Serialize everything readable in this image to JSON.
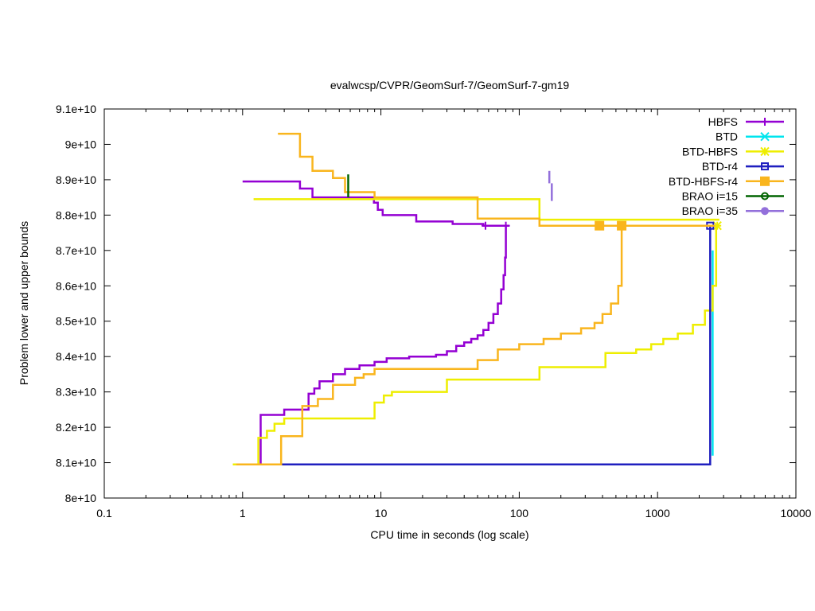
{
  "chart_data": {
    "type": "line",
    "title": "evalwcsp/CVPR/GeomSurf-7/GeomSurf-7-gm19",
    "xlabel": "CPU time in seconds (log scale)",
    "ylabel": "Problem lower and upper bounds",
    "xscale": "log",
    "xlim": [
      0.1,
      10000
    ],
    "ylim": [
      80000000000,
      91000000000
    ],
    "xticks": [
      {
        "v": 0.1,
        "label": "0.1"
      },
      {
        "v": 1,
        "label": "1"
      },
      {
        "v": 10,
        "label": "10"
      },
      {
        "v": 100,
        "label": "100"
      },
      {
        "v": 1000,
        "label": "1000"
      },
      {
        "v": 10000,
        "label": "10000"
      }
    ],
    "yticks": [
      {
        "v": 80000000000,
        "label": "8e+10"
      },
      {
        "v": 81000000000,
        "label": "8.1e+10"
      },
      {
        "v": 82000000000,
        "label": "8.2e+10"
      },
      {
        "v": 83000000000,
        "label": "8.3e+10"
      },
      {
        "v": 84000000000,
        "label": "8.4e+10"
      },
      {
        "v": 85000000000,
        "label": "8.5e+10"
      },
      {
        "v": 86000000000,
        "label": "8.6e+10"
      },
      {
        "v": 87000000000,
        "label": "8.7e+10"
      },
      {
        "v": 88000000000,
        "label": "8.8e+10"
      },
      {
        "v": 89000000000,
        "label": "8.9e+10"
      },
      {
        "v": 90000000000,
        "label": "9e+10"
      },
      {
        "v": 91000000000,
        "label": "9.1e+10"
      }
    ],
    "grid": false,
    "legend": "top-right",
    "series": [
      {
        "name": "HBFS",
        "color": "#9400d3",
        "marker": "plus",
        "lines": [
          [
            [
              1.0,
              88950000000
            ],
            [
              2.6,
              88950000000
            ],
            [
              2.6,
              88750000000
            ],
            [
              3.2,
              88750000000
            ],
            [
              3.2,
              88500000000
            ],
            [
              8.9,
              88500000000
            ],
            [
              8.9,
              88350000000
            ],
            [
              9.5,
              88350000000
            ],
            [
              9.5,
              88150000000
            ],
            [
              10.3,
              88150000000
            ],
            [
              10.3,
              88000000000
            ],
            [
              18.0,
              88000000000
            ],
            [
              18.0,
              87820000000
            ],
            [
              33.0,
              87820000000
            ],
            [
              33.0,
              87750000000
            ],
            [
              55.0,
              87750000000
            ],
            [
              55.0,
              87700000000
            ],
            [
              85.0,
              87700000000
            ]
          ],
          [
            [
              1.35,
              80950000000
            ],
            [
              1.35,
              82350000000
            ],
            [
              2.0,
              82350000000
            ],
            [
              2.0,
              82500000000
            ],
            [
              3.0,
              82500000000
            ],
            [
              3.0,
              82950000000
            ],
            [
              3.3,
              82950000000
            ],
            [
              3.3,
              83100000000
            ],
            [
              3.6,
              83100000000
            ],
            [
              3.6,
              83300000000
            ],
            [
              4.5,
              83300000000
            ],
            [
              4.5,
              83500000000
            ],
            [
              5.5,
              83500000000
            ],
            [
              5.5,
              83650000000
            ],
            [
              7.0,
              83650000000
            ],
            [
              7.0,
              83750000000
            ],
            [
              9.0,
              83750000000
            ],
            [
              9.0,
              83850000000
            ],
            [
              11.0,
              83850000000
            ],
            [
              11.0,
              83950000000
            ],
            [
              16.0,
              83950000000
            ],
            [
              16.0,
              84000000000
            ],
            [
              25.0,
              84000000000
            ],
            [
              25.0,
              84050000000
            ],
            [
              30.0,
              84050000000
            ],
            [
              30.0,
              84150000000
            ],
            [
              35.0,
              84150000000
            ],
            [
              35.0,
              84300000000
            ],
            [
              40.0,
              84300000000
            ],
            [
              40.0,
              84400000000
            ],
            [
              45.0,
              84400000000
            ],
            [
              45.0,
              84500000000
            ],
            [
              50.0,
              84500000000
            ],
            [
              50.0,
              84600000000
            ],
            [
              55.0,
              84600000000
            ],
            [
              55.0,
              84750000000
            ],
            [
              60.0,
              84750000000
            ],
            [
              60.0,
              84950000000
            ],
            [
              65.0,
              84950000000
            ],
            [
              65.0,
              85200000000
            ],
            [
              70.0,
              85200000000
            ],
            [
              70.0,
              85500000000
            ],
            [
              74.0,
              85500000000
            ],
            [
              74.0,
              85900000000
            ],
            [
              77.0,
              85900000000
            ],
            [
              77.0,
              86300000000
            ],
            [
              79.0,
              86300000000
            ],
            [
              79.0,
              86800000000
            ],
            [
              80.0,
              86800000000
            ],
            [
              80.0,
              87700000000
            ]
          ]
        ],
        "points": [
          [
            57.0,
            87700000000
          ],
          [
            80.0,
            87700000000
          ]
        ]
      },
      {
        "name": "BTD",
        "color": "#00e5ee",
        "marker": "cross",
        "lines": [
          [
            [
              2500.0,
              81200000000
            ],
            [
              2500.0,
              87000000000
            ]
          ]
        ],
        "points": []
      },
      {
        "name": "BTD-HBFS",
        "color": "#eeee00",
        "marker": "star",
        "lines": [
          [
            [
              1.2,
              88450000000
            ],
            [
              140.0,
              88450000000
            ],
            [
              140.0,
              87870000000
            ],
            [
              2800.0,
              87870000000
            ]
          ],
          [
            [
              0.85,
              80950000000
            ],
            [
              1.3,
              80950000000
            ],
            [
              1.3,
              81700000000
            ],
            [
              1.5,
              81700000000
            ],
            [
              1.5,
              81900000000
            ],
            [
              1.7,
              81900000000
            ],
            [
              1.7,
              82100000000
            ],
            [
              2.0,
              82100000000
            ],
            [
              2.0,
              82250000000
            ],
            [
              9.0,
              82250000000
            ],
            [
              9.0,
              82700000000
            ],
            [
              10.5,
              82700000000
            ],
            [
              10.5,
              82900000000
            ],
            [
              12.0,
              82900000000
            ],
            [
              12.0,
              83000000000
            ],
            [
              30.0,
              83000000000
            ],
            [
              30.0,
              83350000000
            ],
            [
              140.0,
              83350000000
            ],
            [
              140.0,
              83700000000
            ],
            [
              420.0,
              83700000000
            ],
            [
              420.0,
              84100000000
            ],
            [
              700.0,
              84100000000
            ],
            [
              700.0,
              84200000000
            ],
            [
              900.0,
              84200000000
            ],
            [
              900.0,
              84350000000
            ],
            [
              1100.0,
              84350000000
            ],
            [
              1100.0,
              84500000000
            ],
            [
              1400.0,
              84500000000
            ],
            [
              1400.0,
              84650000000
            ],
            [
              1800.0,
              84650000000
            ],
            [
              1800.0,
              84900000000
            ],
            [
              2200.0,
              84900000000
            ],
            [
              2200.0,
              85300000000
            ],
            [
              2500.0,
              85300000000
            ],
            [
              2500.0,
              86000000000
            ],
            [
              2650.0,
              86000000000
            ],
            [
              2650.0,
              87700000000
            ]
          ]
        ],
        "points": [
          [
            2700.0,
            87700000000
          ]
        ]
      },
      {
        "name": "BTD-r4",
        "color": "#1f1fbf",
        "marker": "box",
        "lines": [
          [
            [
              0.92,
              80950000000
            ],
            [
              2400.0,
              80950000000
            ],
            [
              2400.0,
              87700000000
            ]
          ]
        ],
        "points": [
          [
            2400.0,
            87700000000
          ]
        ]
      },
      {
        "name": "BTD-HBFS-r4",
        "color": "#f9b51d",
        "marker": "fbox",
        "lines": [
          [
            [
              1.8,
              90300000000
            ],
            [
              2.6,
              90300000000
            ],
            [
              2.6,
              89650000000
            ],
            [
              3.2,
              89650000000
            ],
            [
              3.2,
              89250000000
            ],
            [
              4.5,
              89250000000
            ],
            [
              4.5,
              89050000000
            ],
            [
              5.5,
              89050000000
            ],
            [
              5.5,
              88650000000
            ],
            [
              9.0,
              88650000000
            ],
            [
              9.0,
              88500000000
            ],
            [
              50.0,
              88500000000
            ],
            [
              50.0,
              87900000000
            ],
            [
              140.0,
              87900000000
            ],
            [
              140.0,
              87700000000
            ],
            [
              2600.0,
              87700000000
            ]
          ],
          [
            [
              0.9,
              80950000000
            ],
            [
              1.9,
              80950000000
            ],
            [
              1.9,
              81750000000
            ],
            [
              2.7,
              81750000000
            ],
            [
              2.7,
              82600000000
            ],
            [
              3.5,
              82600000000
            ],
            [
              3.5,
              82800000000
            ],
            [
              4.5,
              82800000000
            ],
            [
              4.5,
              83200000000
            ],
            [
              6.5,
              83200000000
            ],
            [
              6.5,
              83400000000
            ],
            [
              7.5,
              83400000000
            ],
            [
              7.5,
              83500000000
            ],
            [
              9.0,
              83500000000
            ],
            [
              9.0,
              83650000000
            ],
            [
              50.0,
              83650000000
            ],
            [
              50.0,
              83900000000
            ],
            [
              70.0,
              83900000000
            ],
            [
              70.0,
              84200000000
            ],
            [
              100.0,
              84200000000
            ],
            [
              100.0,
              84350000000
            ],
            [
              150.0,
              84350000000
            ],
            [
              150.0,
              84500000000
            ],
            [
              200.0,
              84500000000
            ],
            [
              200.0,
              84650000000
            ],
            [
              280.0,
              84650000000
            ],
            [
              280.0,
              84800000000
            ],
            [
              350.0,
              84800000000
            ],
            [
              350.0,
              84950000000
            ],
            [
              400.0,
              84950000000
            ],
            [
              400.0,
              85200000000
            ],
            [
              460.0,
              85200000000
            ],
            [
              460.0,
              85500000000
            ],
            [
              520.0,
              85500000000
            ],
            [
              520.0,
              86000000000
            ],
            [
              550.0,
              86000000000
            ],
            [
              550.0,
              87700000000
            ]
          ]
        ],
        "points": [
          [
            380.0,
            87700000000
          ],
          [
            550.0,
            87700000000
          ]
        ]
      },
      {
        "name": "BRAO i=15",
        "color": "#006400",
        "marker": "circle",
        "lines": [
          [
            [
              5.8,
              88500000000
            ],
            [
              5.8,
              89150000000
            ]
          ]
        ],
        "points": []
      },
      {
        "name": "BRAO i=35",
        "color": "#9370db",
        "marker": "fcircle",
        "lines": [
          [
            [
              165.0,
              88900000000
            ],
            [
              165.0,
              89250000000
            ]
          ],
          [
            [
              172.0,
              88400000000
            ],
            [
              172.0,
              88900000000
            ]
          ]
        ],
        "points": []
      }
    ]
  }
}
